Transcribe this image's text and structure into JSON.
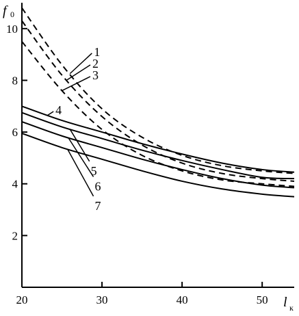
{
  "chart_data": {
    "type": "line",
    "ylabel_main": "f",
    "ylabel_sub": "0",
    "xlabel_main": "l",
    "xlabel_sub": "к",
    "xlim": [
      20,
      54
    ],
    "ylim": [
      0,
      11
    ],
    "x_ticks": [
      {
        "value": 20,
        "label": "20"
      },
      {
        "value": 30,
        "label": "30"
      },
      {
        "value": 40,
        "label": "40"
      },
      {
        "value": 50,
        "label": "50"
      }
    ],
    "y_ticks": [
      {
        "value": 2,
        "label": "2"
      },
      {
        "value": 4,
        "label": "4"
      },
      {
        "value": 6,
        "label": "6"
      },
      {
        "value": 8,
        "label": "8"
      },
      {
        "value": 10,
        "label": "10"
      }
    ],
    "grid": false,
    "x": [
      20,
      25,
      30,
      35,
      40,
      45,
      50,
      54
    ],
    "series": [
      {
        "name": "1",
        "style": "dashed",
        "values": [
          10.8,
          8.6,
          6.9,
          5.8,
          5.1,
          4.7,
          4.5,
          4.4
        ],
        "label_at": [
          29,
          9.1
        ]
      },
      {
        "name": "2",
        "style": "dashed",
        "values": [
          10.3,
          8.2,
          6.6,
          5.5,
          4.8,
          4.4,
          4.2,
          4.1
        ],
        "label_at": [
          28.8,
          8.65
        ]
      },
      {
        "name": "3",
        "style": "dashed",
        "values": [
          9.5,
          7.6,
          6.1,
          5.1,
          4.5,
          4.15,
          4.0,
          3.9
        ],
        "label_at": [
          28.8,
          8.2
        ]
      },
      {
        "name": "4",
        "style": "solid",
        "values": [
          7.0,
          6.45,
          6.0,
          5.55,
          5.15,
          4.8,
          4.55,
          4.45
        ],
        "label_at": [
          24.2,
          6.85
        ]
      },
      {
        "name": "5",
        "style": "solid",
        "values": [
          6.75,
          6.2,
          5.75,
          5.3,
          4.9,
          4.55,
          4.25,
          4.2
        ],
        "label_at": [
          28.6,
          4.5
        ]
      },
      {
        "name": "6",
        "style": "solid",
        "values": [
          6.4,
          5.85,
          5.4,
          4.95,
          4.55,
          4.2,
          3.95,
          3.85
        ],
        "label_at": [
          29.1,
          3.9
        ]
      },
      {
        "name": "7",
        "style": "solid",
        "values": [
          5.95,
          5.4,
          4.95,
          4.5,
          4.1,
          3.8,
          3.6,
          3.5
        ],
        "label_at": [
          29.1,
          3.15
        ]
      }
    ]
  }
}
